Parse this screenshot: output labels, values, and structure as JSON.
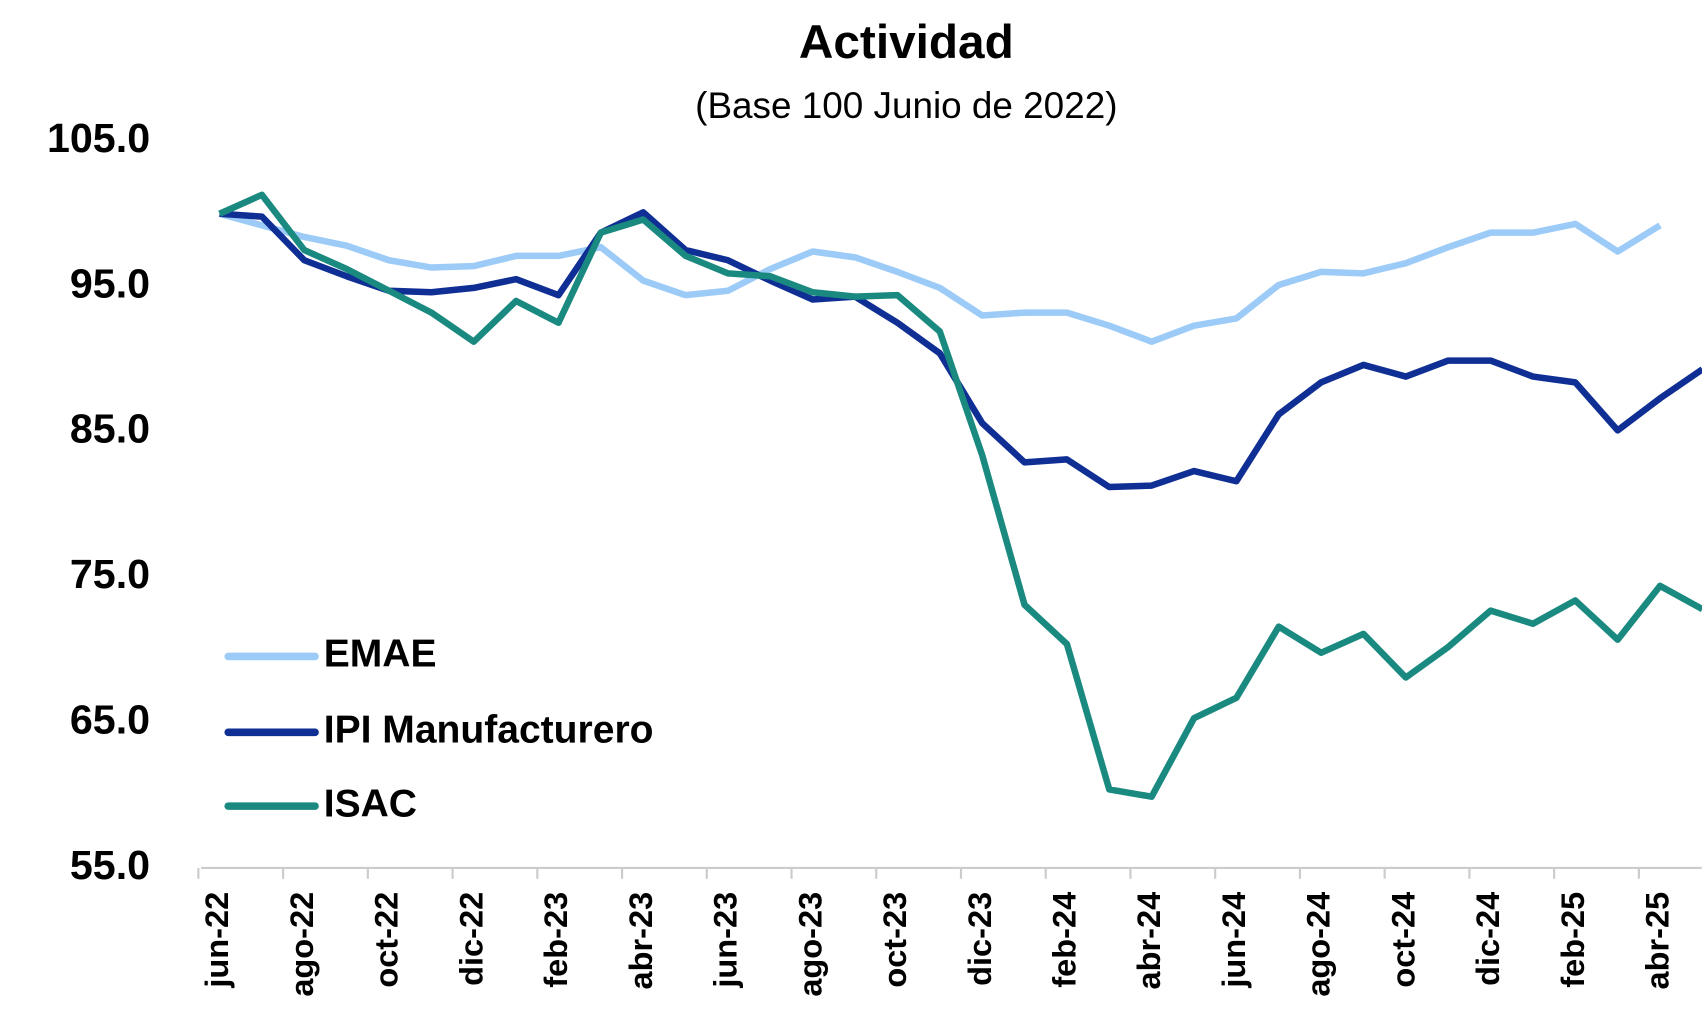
{
  "chart_data": {
    "type": "line",
    "title": "Actividad",
    "subtitle": "(Base 100 Junio de 2022)",
    "categories": [
      "jun-22",
      null,
      "ago-22",
      null,
      "oct-22",
      null,
      "dic-22",
      null,
      "feb-23",
      null,
      "abr-23",
      null,
      "jun-23",
      null,
      "ago-23",
      null,
      "oct-23",
      null,
      "dic-23",
      null,
      "feb-24",
      null,
      "abr-24",
      null,
      "jun-24",
      null,
      "ago-24",
      null,
      "oct-24",
      null,
      "dic-24",
      null,
      "feb-25",
      null,
      "abr-25",
      null
    ],
    "series": [
      {
        "name": "EMAE",
        "color": "#9dcbf8",
        "values": [
          100,
          99.2,
          98.4,
          97.8,
          96.8,
          96.3,
          96.4,
          97.1,
          97.1,
          97.7,
          95.4,
          94.4,
          94.7,
          96.2,
          97.4,
          97.0,
          96.0,
          94.9,
          93.0,
          93.2,
          93.2,
          92.3,
          91.2,
          92.3,
          92.8,
          95.1,
          96.0,
          95.9,
          96.6,
          97.7,
          98.7,
          98.7,
          99.3,
          97.4,
          99.2,
          null
        ]
      },
      {
        "name": "IPI Manufacturero",
        "color": "#0f2f94",
        "values": [
          100,
          99.8,
          96.8,
          95.7,
          94.7,
          94.6,
          94.9,
          95.5,
          94.4,
          98.7,
          100.1,
          97.5,
          96.8,
          95.4,
          94.1,
          94.3,
          92.5,
          90.4,
          85.6,
          82.9,
          83.1,
          81.2,
          81.3,
          82.3,
          81.6,
          86.2,
          88.4,
          89.6,
          88.8,
          89.9,
          89.9,
          88.8,
          88.4,
          85.1,
          87.3,
          89.3
        ]
      },
      {
        "name": "ISAC",
        "color": "#1a8a80",
        "values": [
          100,
          101.3,
          97.5,
          96.2,
          94.7,
          93.2,
          91.2,
          94.0,
          92.5,
          98.7,
          99.6,
          97.1,
          95.9,
          95.7,
          94.6,
          94.3,
          94.4,
          91.9,
          83.4,
          73.1,
          70.4,
          60.4,
          59.9,
          65.3,
          66.7,
          71.6,
          69.8,
          71.1,
          68.1,
          70.2,
          72.7,
          71.8,
          73.4,
          70.7,
          74.4,
          72.8
        ]
      }
    ],
    "ylim": [
      55,
      105
    ],
    "yticks": [
      {
        "value": 55,
        "label": "55.0"
      },
      {
        "value": 65,
        "label": "65.0"
      },
      {
        "value": 75,
        "label": "75.0"
      },
      {
        "value": 85,
        "label": "85.0"
      },
      {
        "value": 95,
        "label": "95.0"
      },
      {
        "value": 105,
        "label": "105.0"
      }
    ],
    "grid": false,
    "legend": "lower left"
  }
}
